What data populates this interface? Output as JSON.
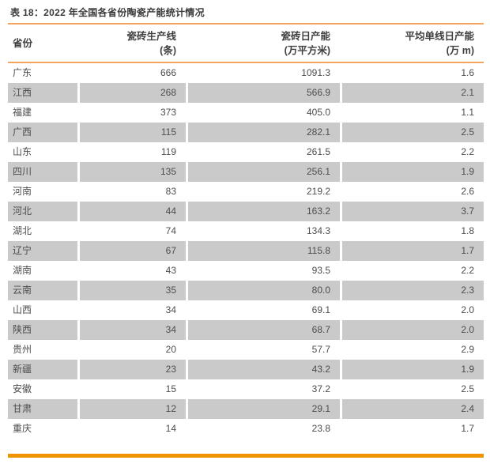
{
  "title": "表 18：2022 年全国各省份陶瓷产能统计情况",
  "table": {
    "columns": [
      {
        "label_line1": "省份",
        "label_line2": ""
      },
      {
        "label_line1": "瓷砖生产线",
        "label_line2": "(条)"
      },
      {
        "label_line1": "瓷砖日产能",
        "label_line2": "(万平方米)"
      },
      {
        "label_line1": "平均单线日产能",
        "label_line2": "(万 m)"
      }
    ],
    "rows": [
      [
        "广东",
        "666",
        "1091.3",
        "1.6"
      ],
      [
        "江西",
        "268",
        "566.9",
        "2.1"
      ],
      [
        "福建",
        "373",
        "405.0",
        "1.1"
      ],
      [
        "广西",
        "115",
        "282.1",
        "2.5"
      ],
      [
        "山东",
        "119",
        "261.5",
        "2.2"
      ],
      [
        "四川",
        "135",
        "256.1",
        "1.9"
      ],
      [
        "河南",
        "83",
        "219.2",
        "2.6"
      ],
      [
        "河北",
        "44",
        "163.2",
        "3.7"
      ],
      [
        "湖北",
        "74",
        "134.3",
        "1.8"
      ],
      [
        "辽宁",
        "67",
        "115.8",
        "1.7"
      ],
      [
        "湖南",
        "43",
        "93.5",
        "2.2"
      ],
      [
        "云南",
        "35",
        "80.0",
        "2.3"
      ],
      [
        "山西",
        "34",
        "69.1",
        "2.0"
      ],
      [
        "陕西",
        "34",
        "68.7",
        "2.0"
      ],
      [
        "贵州",
        "20",
        "57.7",
        "2.9"
      ],
      [
        "新疆",
        "23",
        "43.2",
        "1.9"
      ],
      [
        "安徽",
        "15",
        "37.2",
        "2.5"
      ],
      [
        "甘肃",
        "12",
        "29.1",
        "2.4"
      ],
      [
        "重庆",
        "14",
        "23.8",
        "1.7"
      ]
    ]
  },
  "colors": {
    "rule_light_orange": "#F2A55E",
    "band_strong_orange": "#EF9400",
    "stripe_gray": "#CACACA",
    "title_text": "#3A3A3A",
    "body_text": "#4D4D4D"
  }
}
